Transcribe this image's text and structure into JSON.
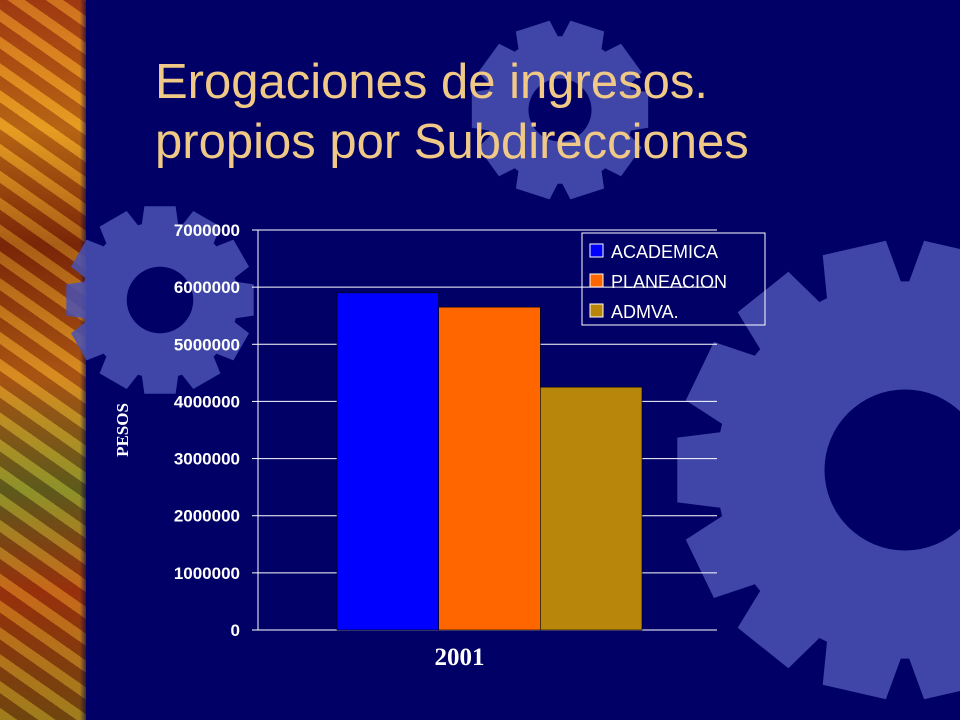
{
  "slide": {
    "title_line1": "Erogaciones de ingresos.",
    "title_line2": "propios por Subdirecciones"
  },
  "colors": {
    "background": "#000066",
    "title": "#f0c987",
    "gear": "#4a52b4"
  },
  "chart_data": {
    "type": "bar",
    "categories": [
      "2001"
    ],
    "series": [
      {
        "name": "ACADEMICA",
        "values": [
          5900000
        ],
        "color": "#0000ff"
      },
      {
        "name": "PLANEACION",
        "values": [
          5650000
        ],
        "color": "#ff6600"
      },
      {
        "name": "ADMVA.",
        "values": [
          4250000
        ],
        "color": "#b8860b"
      }
    ],
    "ylabel": "PESOS",
    "xlabel": "",
    "ylim": [
      0,
      7000000
    ],
    "yticks": [
      "0",
      "1000000",
      "2000000",
      "3000000",
      "4000000",
      "5000000",
      "6000000",
      "7000000"
    ],
    "grid": true,
    "legend_position": "top-right"
  }
}
